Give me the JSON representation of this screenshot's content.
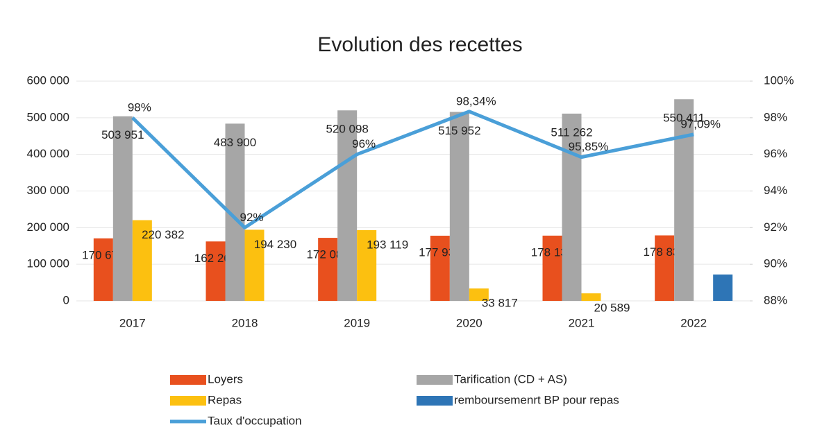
{
  "chart_data": {
    "type": "bar",
    "title": "Evolution des recettes",
    "categories": [
      "2017",
      "2018",
      "2019",
      "2020",
      "2021",
      "2022"
    ],
    "series": [
      {
        "name": "Loyers",
        "type": "bar",
        "color": "#e8501e",
        "values": [
          170678,
          162267,
          172089,
          177933,
          178138,
          178839
        ],
        "value_labels": [
          "170 678",
          "162 267",
          "172 089",
          "177 933",
          "178 138",
          "178 839"
        ]
      },
      {
        "name": "Tarification (CD + AS)",
        "type": "bar",
        "color": "#a6a6a6",
        "values": [
          503951,
          483900,
          520098,
          515952,
          511262,
          550411
        ],
        "value_labels": [
          "503 951",
          "483 900",
          "520 098",
          "515 952",
          "511 262",
          "550 411"
        ]
      },
      {
        "name": "Repas",
        "type": "bar",
        "color": "#fcc010",
        "values": [
          220382,
          194230,
          193119,
          33817,
          20589,
          null
        ],
        "value_labels": [
          "220 382",
          "194 230",
          "193 119",
          "33 817",
          "20 589",
          null
        ]
      },
      {
        "name": "remboursemenrt BP pour repas",
        "type": "bar",
        "color": "#2e75b6",
        "values": [
          null,
          null,
          null,
          null,
          null,
          72000
        ]
      },
      {
        "name": "Taux d'occupation",
        "type": "line",
        "axis": "y2",
        "color": "#4a9fd8",
        "values": [
          98,
          92,
          96,
          98.34,
          95.85,
          97.09
        ],
        "value_labels": [
          "98%",
          "92%",
          "96%",
          "98,34%",
          "95,85%",
          "97,09%"
        ]
      }
    ],
    "ylim": [
      0,
      600000
    ],
    "yticks": [
      0,
      {
        "value": 100000,
        "label": "100 000"
      },
      {
        "value": 200000,
        "label": "200 000"
      },
      {
        "value": 300000,
        "label": "300 000"
      },
      {
        "value": 400000,
        "label": "400 000"
      },
      {
        "value": 500000,
        "label": "500 000"
      },
      {
        "value": 600000,
        "label": "600 000"
      }
    ],
    "y2lim": [
      88,
      100
    ],
    "y2ticks": [
      {
        "value": 88,
        "label": "88%"
      },
      {
        "value": 90,
        "label": "90%"
      },
      {
        "value": 92,
        "label": "92%"
      },
      {
        "value": 94,
        "label": "94%"
      },
      {
        "value": 96,
        "label": "96%"
      },
      {
        "value": 98,
        "label": "98%"
      },
      {
        "value": 100,
        "label": "100%"
      }
    ],
    "legend": "bottom"
  }
}
